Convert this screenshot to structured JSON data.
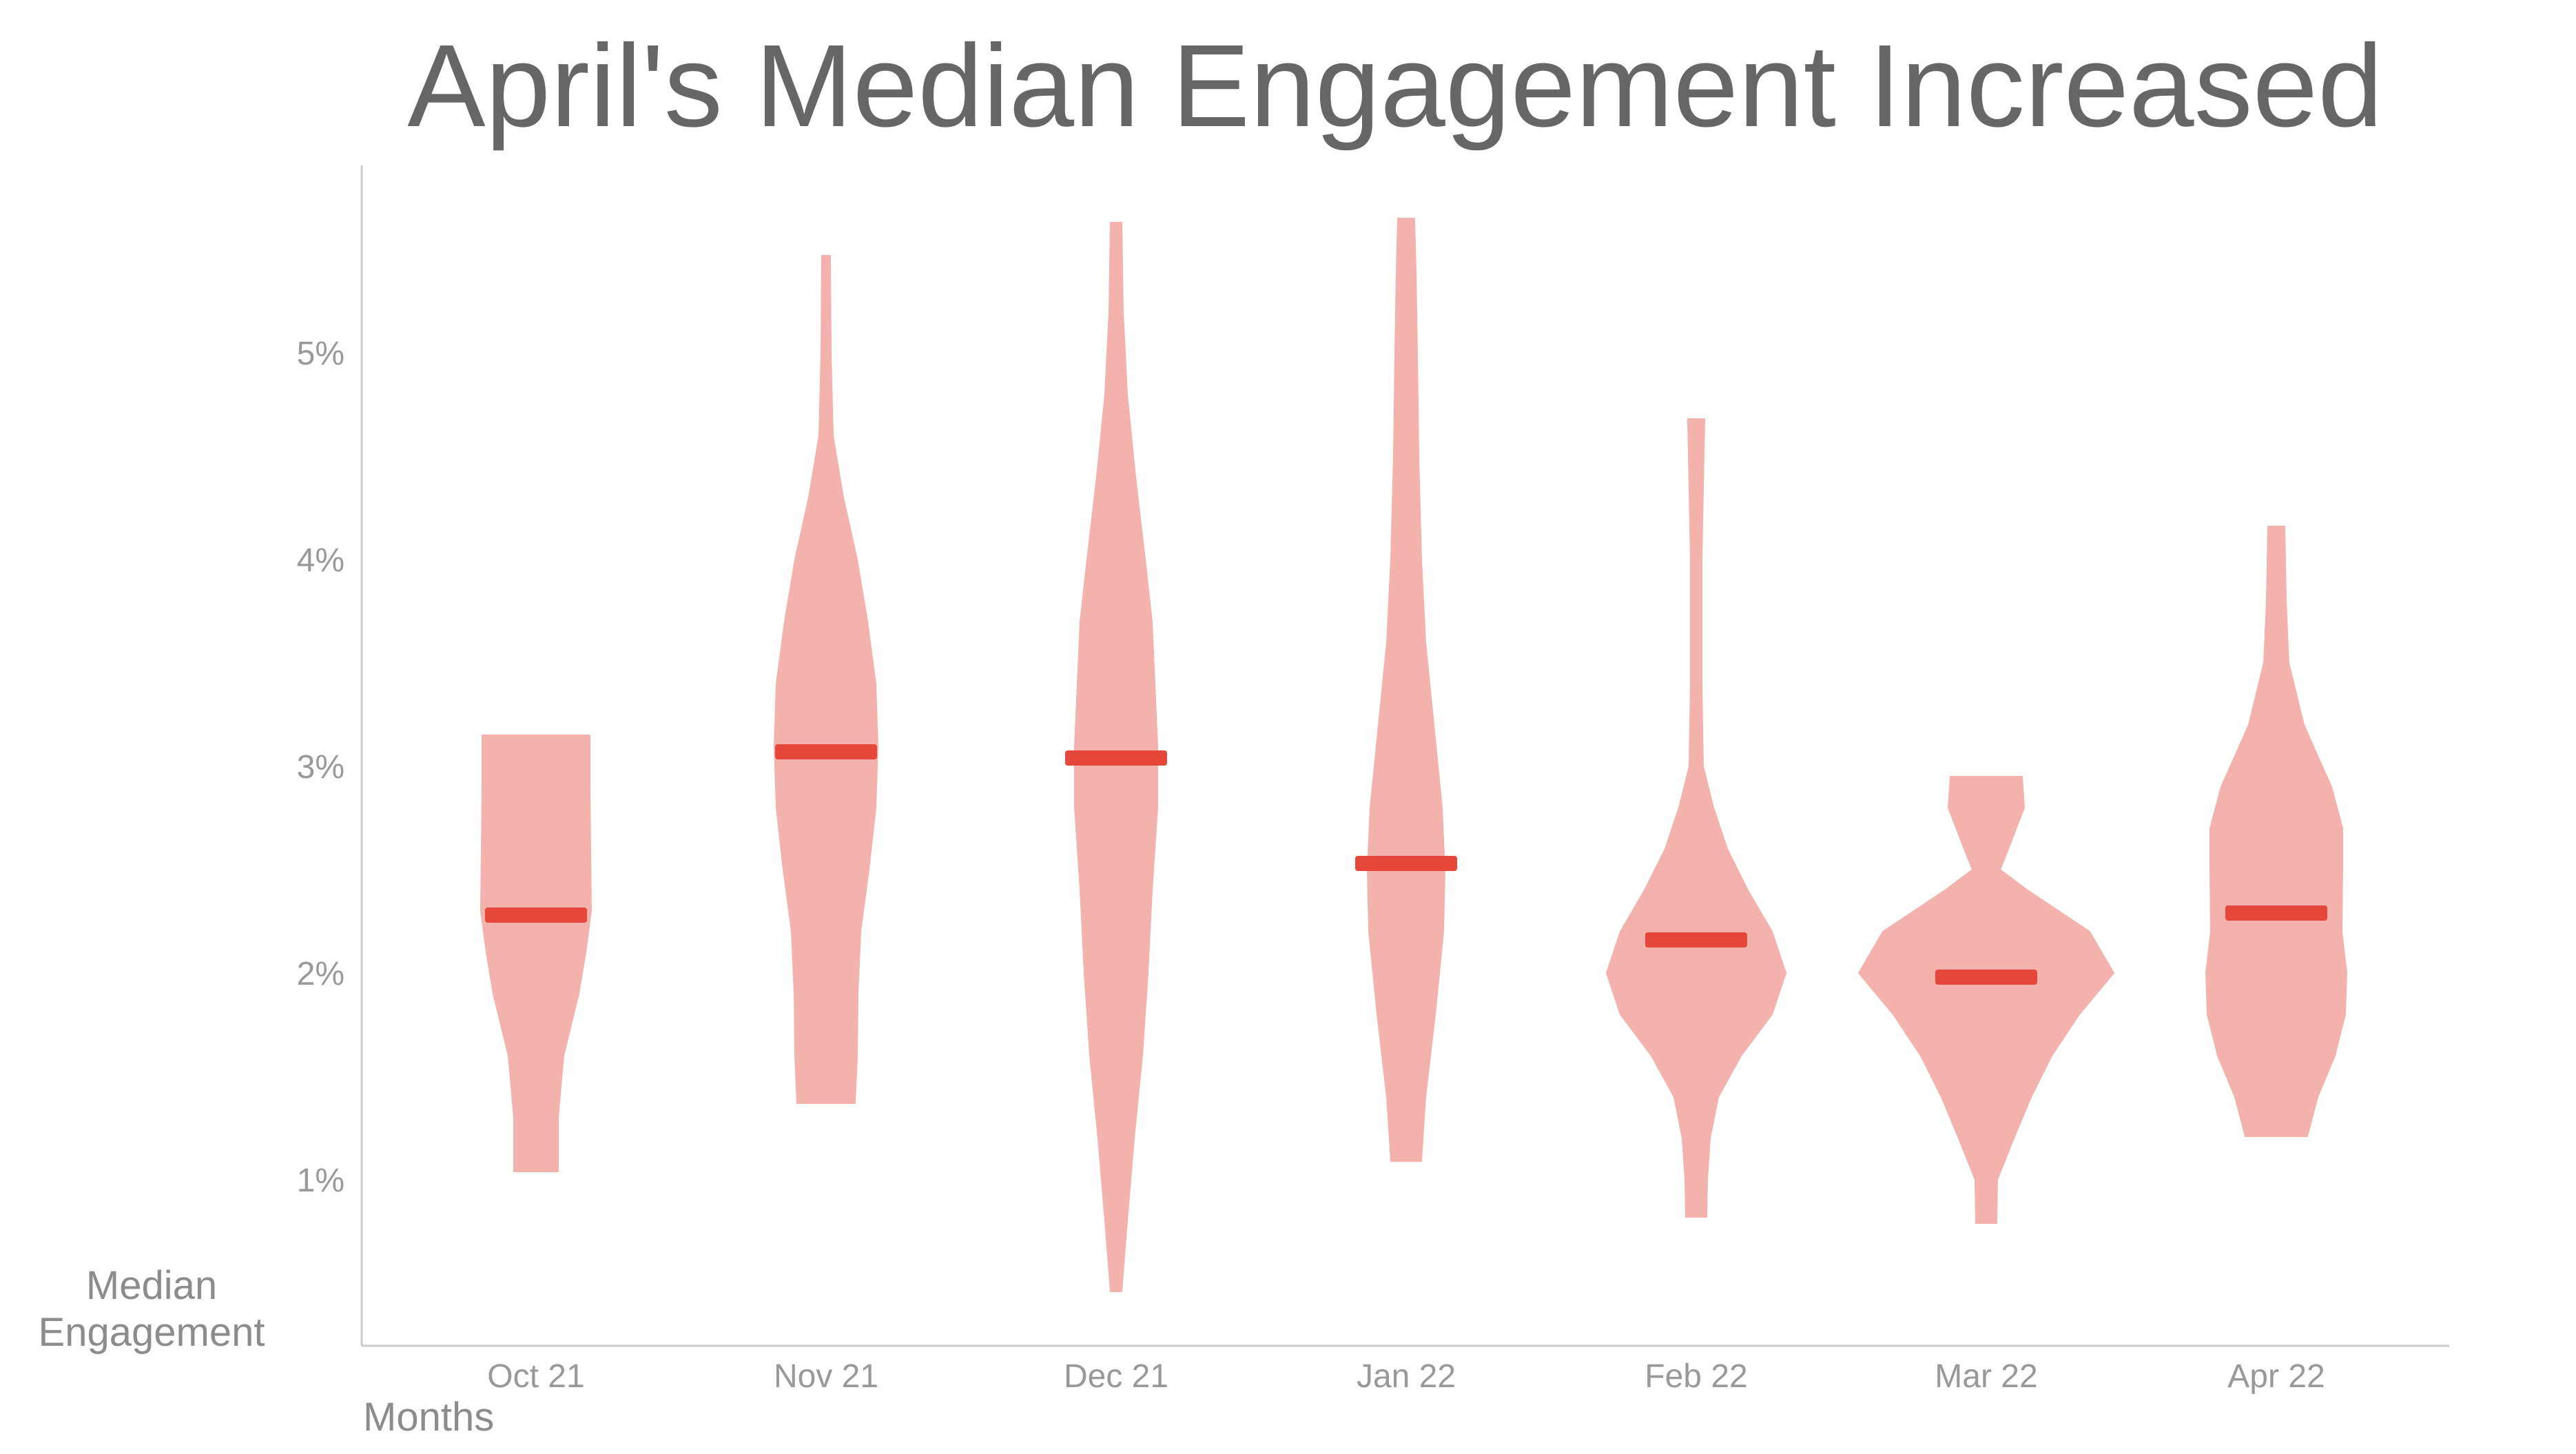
{
  "chart_data": {
    "type": "violin",
    "title": "April's Median Engagement Increased",
    "xlabel": "Months",
    "ylabel": [
      "Median",
      "Engagement"
    ],
    "ylim": [
      0.2,
      5.9
    ],
    "yticks": [
      "1%",
      "2%",
      "3%",
      "4%",
      "5%"
    ],
    "ytick_values": [
      1,
      2,
      3,
      4,
      5
    ],
    "categories": [
      "Oct 21",
      "Nov 21",
      "Dec 21",
      "Jan 22",
      "Feb 22",
      "Mar 22",
      "Apr 22"
    ],
    "medians": [
      2.28,
      3.07,
      3.04,
      2.53,
      2.16,
      1.98,
      2.29
    ],
    "ranges": [
      [
        1.04,
        3.15
      ],
      [
        1.37,
        5.47
      ],
      [
        0.46,
        5.63
      ],
      [
        1.09,
        5.65
      ],
      [
        0.82,
        4.68
      ],
      [
        0.79,
        2.95
      ],
      [
        1.21,
        4.16
      ]
    ],
    "violin_color": "#f4b2ad",
    "median_color": "#e5473a",
    "legend": "none",
    "grid": false
  }
}
